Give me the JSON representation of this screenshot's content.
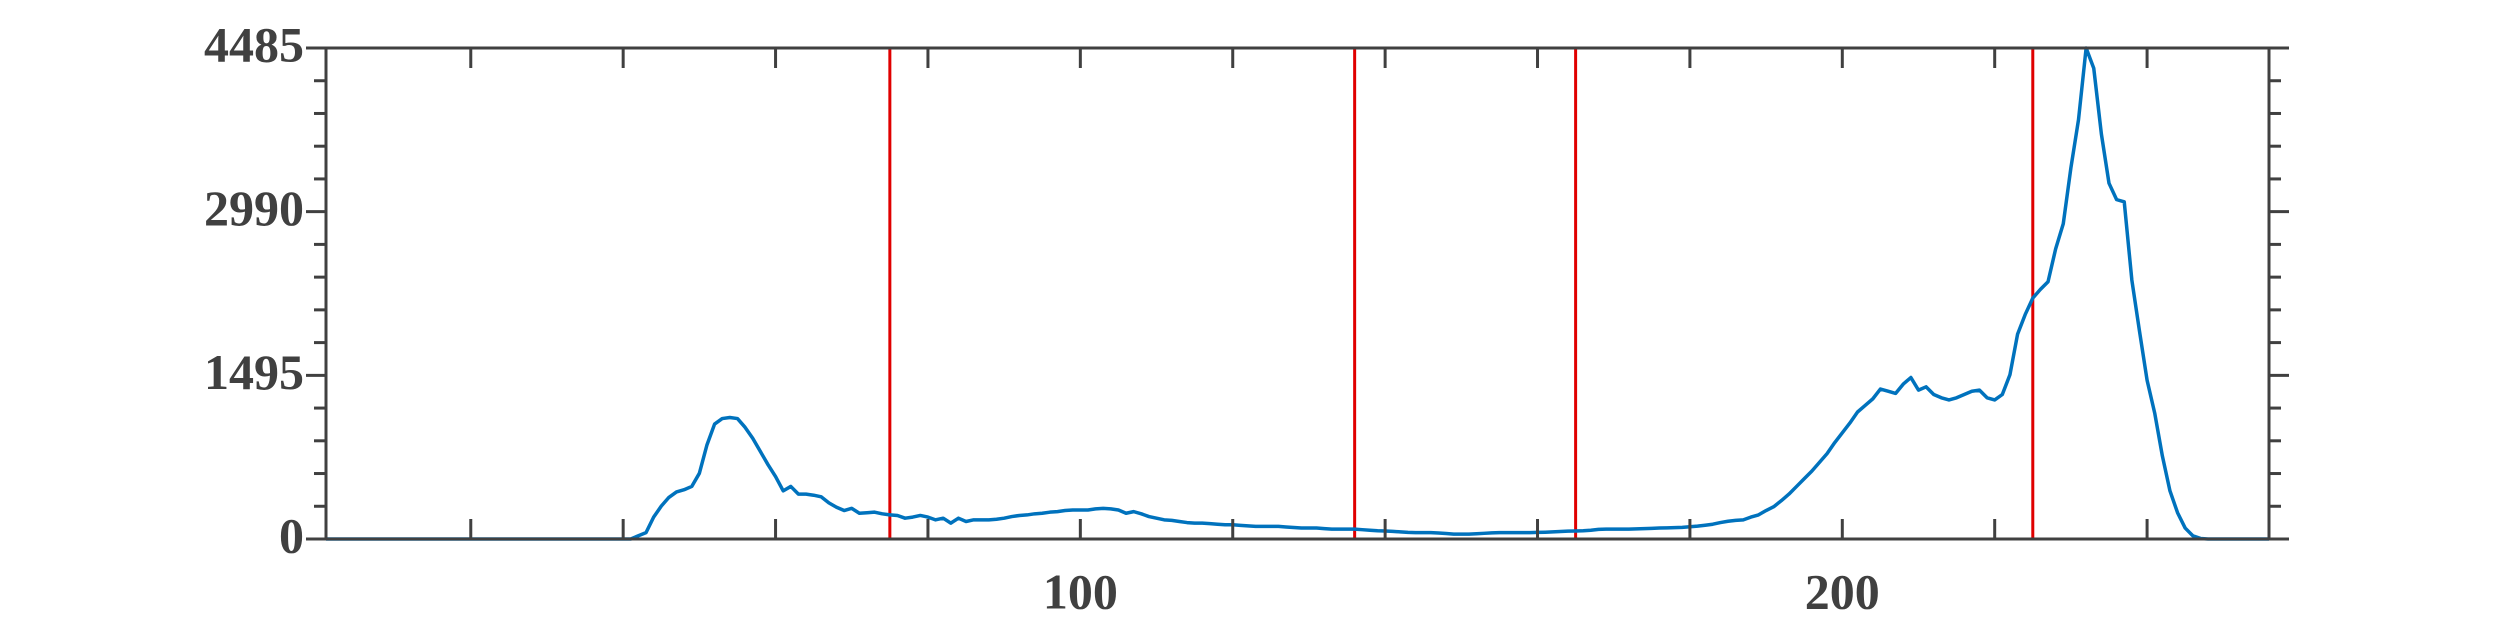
{
  "chart_data": {
    "type": "line",
    "x": [
      1,
      2,
      3,
      4,
      5,
      6,
      7,
      8,
      9,
      10,
      11,
      12,
      13,
      14,
      15,
      16,
      17,
      18,
      19,
      20,
      21,
      22,
      23,
      24,
      25,
      26,
      27,
      28,
      29,
      30,
      31,
      32,
      33,
      34,
      35,
      36,
      37,
      38,
      39,
      40,
      41,
      42,
      43,
      44,
      45,
      46,
      47,
      48,
      49,
      50,
      51,
      52,
      53,
      54,
      55,
      56,
      57,
      58,
      59,
      60,
      61,
      62,
      63,
      64,
      65,
      66,
      67,
      68,
      69,
      70,
      71,
      72,
      73,
      74,
      75,
      76,
      77,
      78,
      79,
      80,
      81,
      82,
      83,
      84,
      85,
      86,
      87,
      88,
      89,
      90,
      91,
      92,
      93,
      94,
      95,
      96,
      97,
      98,
      99,
      100,
      101,
      102,
      103,
      104,
      105,
      106,
      107,
      108,
      109,
      110,
      111,
      112,
      113,
      114,
      115,
      116,
      117,
      118,
      119,
      120,
      121,
      122,
      123,
      124,
      125,
      126,
      127,
      128,
      129,
      130,
      131,
      132,
      133,
      134,
      135,
      136,
      137,
      138,
      139,
      140,
      141,
      142,
      143,
      144,
      145,
      146,
      147,
      148,
      149,
      150,
      151,
      152,
      153,
      154,
      155,
      156,
      157,
      158,
      159,
      160,
      161,
      162,
      163,
      164,
      165,
      166,
      167,
      168,
      169,
      170,
      171,
      172,
      173,
      174,
      175,
      176,
      177,
      178,
      179,
      180,
      181,
      182,
      183,
      184,
      185,
      186,
      187,
      188,
      189,
      190,
      191,
      192,
      193,
      194,
      195,
      196,
      197,
      198,
      199,
      200,
      201,
      202,
      203,
      204,
      205,
      206,
      207,
      208,
      209,
      210,
      211,
      212,
      213,
      214,
      215,
      216,
      217,
      218,
      219,
      220,
      221,
      222,
      223,
      224,
      225,
      226,
      227,
      228,
      229,
      230,
      231,
      232,
      233,
      234,
      235,
      236,
      237,
      238,
      239,
      240,
      241,
      242,
      243,
      244,
      245,
      246,
      247,
      248,
      249,
      250,
      251,
      252,
      253,
      254,
      255,
      256
    ],
    "series": [
      {
        "color": "#0072bd",
        "values": [
          0,
          0,
          0,
          0,
          0,
          0,
          0,
          0,
          0,
          0,
          0,
          0,
          0,
          0,
          0,
          0,
          0,
          0,
          0,
          0,
          0,
          0,
          0,
          0,
          0,
          0,
          0,
          0,
          0,
          0,
          0,
          0,
          0,
          0,
          0,
          0,
          0,
          0,
          0,
          0,
          0,
          30,
          58,
          200,
          300,
          380,
          430,
          450,
          480,
          600,
          860,
          1050,
          1100,
          1110,
          1100,
          1020,
          920,
          800,
          680,
          570,
          440,
          480,
          410,
          410,
          400,
          385,
          330,
          290,
          260,
          280,
          235,
          240,
          245,
          230,
          220,
          215,
          190,
          200,
          215,
          200,
          175,
          190,
          145,
          190,
          160,
          175,
          175,
          175,
          180,
          190,
          205,
          215,
          220,
          230,
          235,
          245,
          250,
          260,
          265,
          265,
          265,
          275,
          280,
          275,
          265,
          235,
          250,
          230,
          205,
          190,
          175,
          170,
          160,
          150,
          145,
          145,
          140,
          135,
          130,
          130,
          125,
          120,
          115,
          115,
          115,
          115,
          110,
          105,
          100,
          100,
          100,
          95,
          90,
          90,
          90,
          90,
          85,
          80,
          75,
          73,
          70,
          65,
          60,
          58,
          58,
          58,
          55,
          50,
          45,
          44,
          44,
          48,
          52,
          56,
          58,
          58,
          58,
          58,
          58,
          60,
          62,
          65,
          68,
          72,
          73,
          75,
          80,
          88,
          90,
          90,
          90,
          90,
          92,
          95,
          97,
          100,
          102,
          104,
          106,
          112,
          118,
          126,
          135,
          150,
          162,
          170,
          175,
          200,
          220,
          260,
          295,
          350,
          410,
          480,
          550,
          620,
          700,
          780,
          880,
          970,
          1060,
          1160,
          1220,
          1280,
          1370,
          1350,
          1330,
          1415,
          1475,
          1360,
          1390,
          1320,
          1290,
          1270,
          1290,
          1320,
          1350,
          1360,
          1290,
          1270,
          1320,
          1500,
          1870,
          2050,
          2200,
          2280,
          2350,
          2650,
          2880,
          3390,
          3830,
          4485,
          4300,
          3700,
          3250,
          3100,
          3080,
          2365,
          1900,
          1450,
          1150,
          760,
          440,
          240,
          100,
          30,
          5,
          0,
          0,
          0,
          0,
          0,
          0,
          0,
          0,
          0
        ]
      }
    ],
    "thresholds": [
      75,
      136,
      165,
      225
    ],
    "threshold_color": "#e00000",
    "xlim": [
      1,
      256
    ],
    "xticks": [
      100,
      200
    ],
    "xminor": [
      20,
      40,
      60,
      80,
      120,
      140,
      160,
      180,
      220,
      240
    ],
    "ylim": [
      0,
      4485
    ],
    "yticks": [
      0,
      1495,
      2990,
      4485
    ],
    "yminor": [
      299,
      598,
      897,
      1196,
      1794,
      2093,
      2392,
      2691,
      3289,
      3588,
      3887,
      4186
    ]
  }
}
